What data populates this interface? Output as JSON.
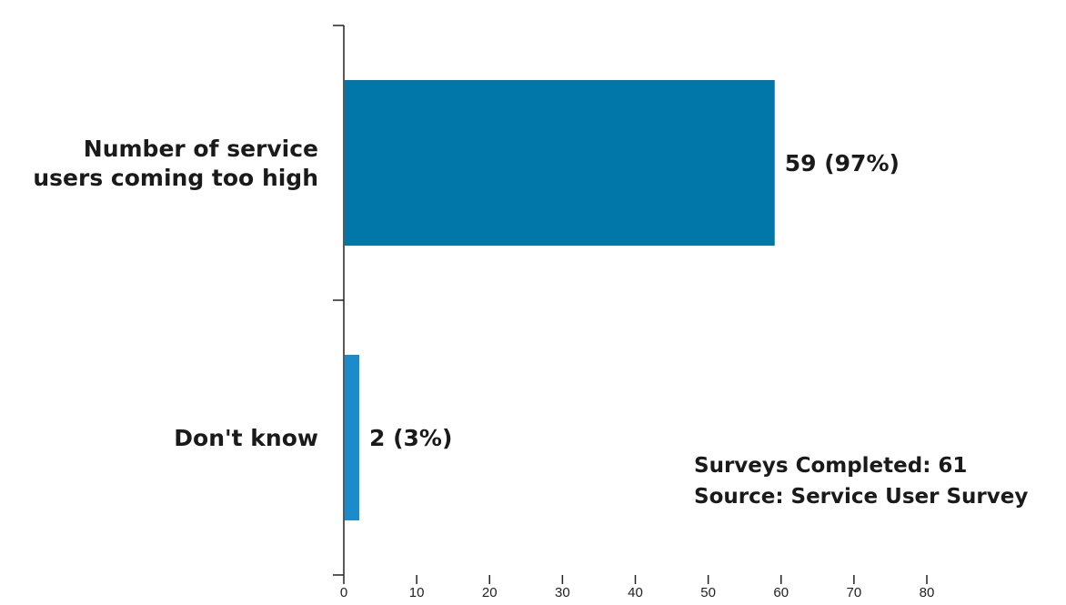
{
  "chart_data": {
    "type": "bar",
    "orientation": "horizontal",
    "categories": [
      [
        "Number of service",
        "users coming too high"
      ],
      [
        "Don't know"
      ]
    ],
    "values": [
      59,
      2
    ],
    "value_labels": [
      "59 (97%)",
      "2 (3%)"
    ],
    "xlim": [
      0,
      80
    ],
    "xticks": [
      0,
      10,
      20,
      30,
      40,
      50,
      60,
      70,
      80
    ],
    "grid": false,
    "legend": "none",
    "bar_colors": [
      "#0077a8",
      "#1a8ccc"
    ],
    "annotation": [
      "Surveys Completed: 61",
      "Source: Service User Survey"
    ]
  }
}
